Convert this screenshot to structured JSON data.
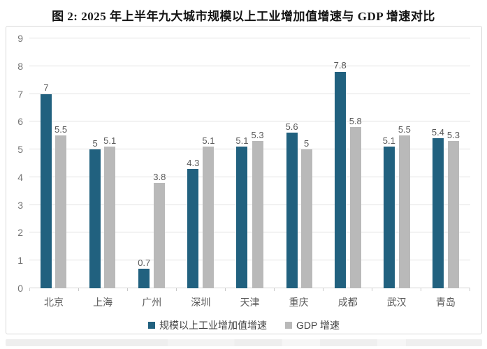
{
  "title": "图 2: 2025 年上半年九大城市规模以上工业增加值增速与 GDP 增速对比",
  "colors": {
    "industrial_bar": "#21617f",
    "gdp_bar": "#b9b9b9",
    "gridline": "#e2e2e2",
    "axis_text": "#757575",
    "label_text": "#595959"
  },
  "chart_data": {
    "type": "bar",
    "title": "图 2: 2025 年上半年九大城市规模以上工业增加值增速与 GDP 增速对比",
    "categories": [
      "北京",
      "上海",
      "广州",
      "深圳",
      "天津",
      "重庆",
      "成都",
      "武汉",
      "青岛"
    ],
    "series": [
      {
        "name": "规模以上工业增加值增速",
        "color": "#21617f",
        "values": [
          7,
          5,
          0.7,
          4.3,
          5.1,
          5.6,
          7.8,
          5.1,
          5.4
        ]
      },
      {
        "name": "GDP 增速",
        "color": "#b9b9b9",
        "values": [
          5.5,
          5.1,
          3.8,
          5.1,
          5.3,
          5,
          5.8,
          5.5,
          5.3
        ]
      }
    ],
    "xlabel": "",
    "ylabel": "",
    "ylim": [
      0,
      9
    ],
    "y_ticks": [
      0,
      1,
      2,
      3,
      4,
      5,
      6,
      7,
      8,
      9
    ],
    "grid": true,
    "value_labels": true,
    "legend_position": "bottom"
  }
}
